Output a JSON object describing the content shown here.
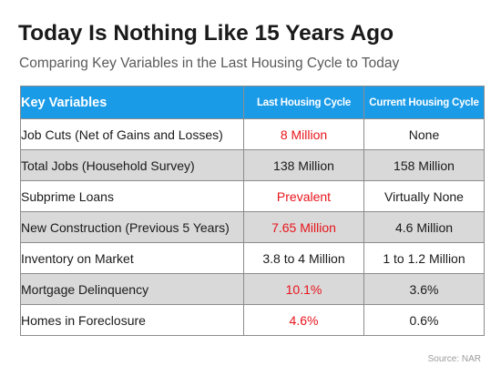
{
  "title": "Today Is Nothing Like 15 Years Ago",
  "subtitle": "Comparing Key Variables in the Last Housing Cycle to Today",
  "table": {
    "headers": {
      "variable": "Key Variables",
      "last": "Last Housing Cycle",
      "current": "Current Housing Cycle"
    },
    "rows": [
      {
        "variable": "Job Cuts (Net of Gains and Losses)",
        "last": "8 Million",
        "current": "None",
        "last_highlight": true
      },
      {
        "variable": "Total Jobs (Household Survey)",
        "last": "138 Million",
        "current": "158 Million",
        "last_highlight": false
      },
      {
        "variable": "Subprime Loans",
        "last": "Prevalent",
        "current": "Virtually None",
        "last_highlight": true
      },
      {
        "variable": "New Construction (Previous 5 Years)",
        "last": "7.65 Million",
        "current": "4.6 Million",
        "last_highlight": true
      },
      {
        "variable": "Inventory on Market",
        "last": "3.8 to 4 Million",
        "current": "1 to 1.2 Million",
        "last_highlight": false
      },
      {
        "variable": "Mortgage Delinquency",
        "last": "10.1%",
        "current": "3.6%",
        "last_highlight": true
      },
      {
        "variable": "Homes in Foreclosure",
        "last": "4.6%",
        "current": "0.6%",
        "last_highlight": true
      }
    ]
  },
  "source": "Source: NAR",
  "colors": {
    "header_bg": "#1a9be8",
    "row_shade": "#d9d9d9",
    "highlight_red": "#e8141b"
  }
}
